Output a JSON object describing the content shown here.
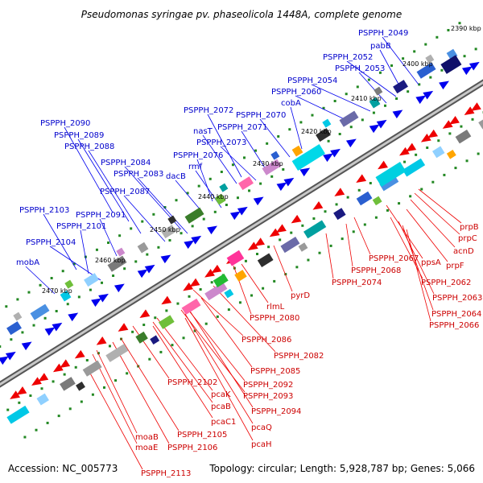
{
  "title": "Pseudomonas syringae pv. phaseolicola 1448A, complete genome",
  "accession": "Accession: NC_005773",
  "summary": "Topology: circular; Length: 5,928,787 bp; Genes: 5,066",
  "ticks": [
    "2390 kbp",
    "2400 kbp",
    "2410 kbp",
    "2420 kbp",
    "2430 kbp",
    "2440 kbp",
    "2450 kbp",
    "2460 kbp",
    "2470 kbp"
  ],
  "forward_labels": [
    "PSPPH_2049",
    "pabB",
    "PSPPH_2052",
    "PSPPH_2053",
    "PSPPH_2054",
    "PSPPH_2060",
    "cobA",
    "PSPPH_2070",
    "PSPPH_2072",
    "PSPPH_2071",
    "nasT",
    "PSPPH_2073",
    "PSPPH_2090",
    "PSPPH_2089",
    "PSPPH_2088",
    "PSPPH_2076",
    "rmf",
    "PSPPH_2084",
    "PSPPH_2083",
    "dacB",
    "PSPPH_2087",
    "PSPPH_2103",
    "PSPPH_2091",
    "PSPPH_2101",
    "PSPPH_2104",
    "mobA"
  ],
  "reverse_labels": [
    "prpB",
    "prpC",
    "acnD",
    "ppsA",
    "prpF",
    "PSPPH_2067",
    "PSPPH_2068",
    "PSPPH_2074",
    "PSPPH_2062",
    "PSPPH_2063",
    "PSPPH_2064",
    "PSPPH_2066",
    "pyrD",
    "rlmL",
    "PSPPH_2080",
    "PSPPH_2086",
    "PSPPH_2082",
    "PSPPH_2085",
    "PSPPH_2102",
    "PSPPH_2092",
    "PSPPH_2093",
    "pcaK",
    "pcaB",
    "PSPPH_2094",
    "pcaC1",
    "pcaQ",
    "PSPPH_2105",
    "moaB",
    "moaE",
    "PSPPH_2106",
    "pcaH",
    "PSPPH_2113"
  ],
  "colors": {
    "forward_gene": "#0000ee",
    "reverse_gene": "#ee0000",
    "backbone": "#808080",
    "tick_dot": "#228822",
    "fwd_label": "#0000cc",
    "rev_label": "#cc0000"
  }
}
